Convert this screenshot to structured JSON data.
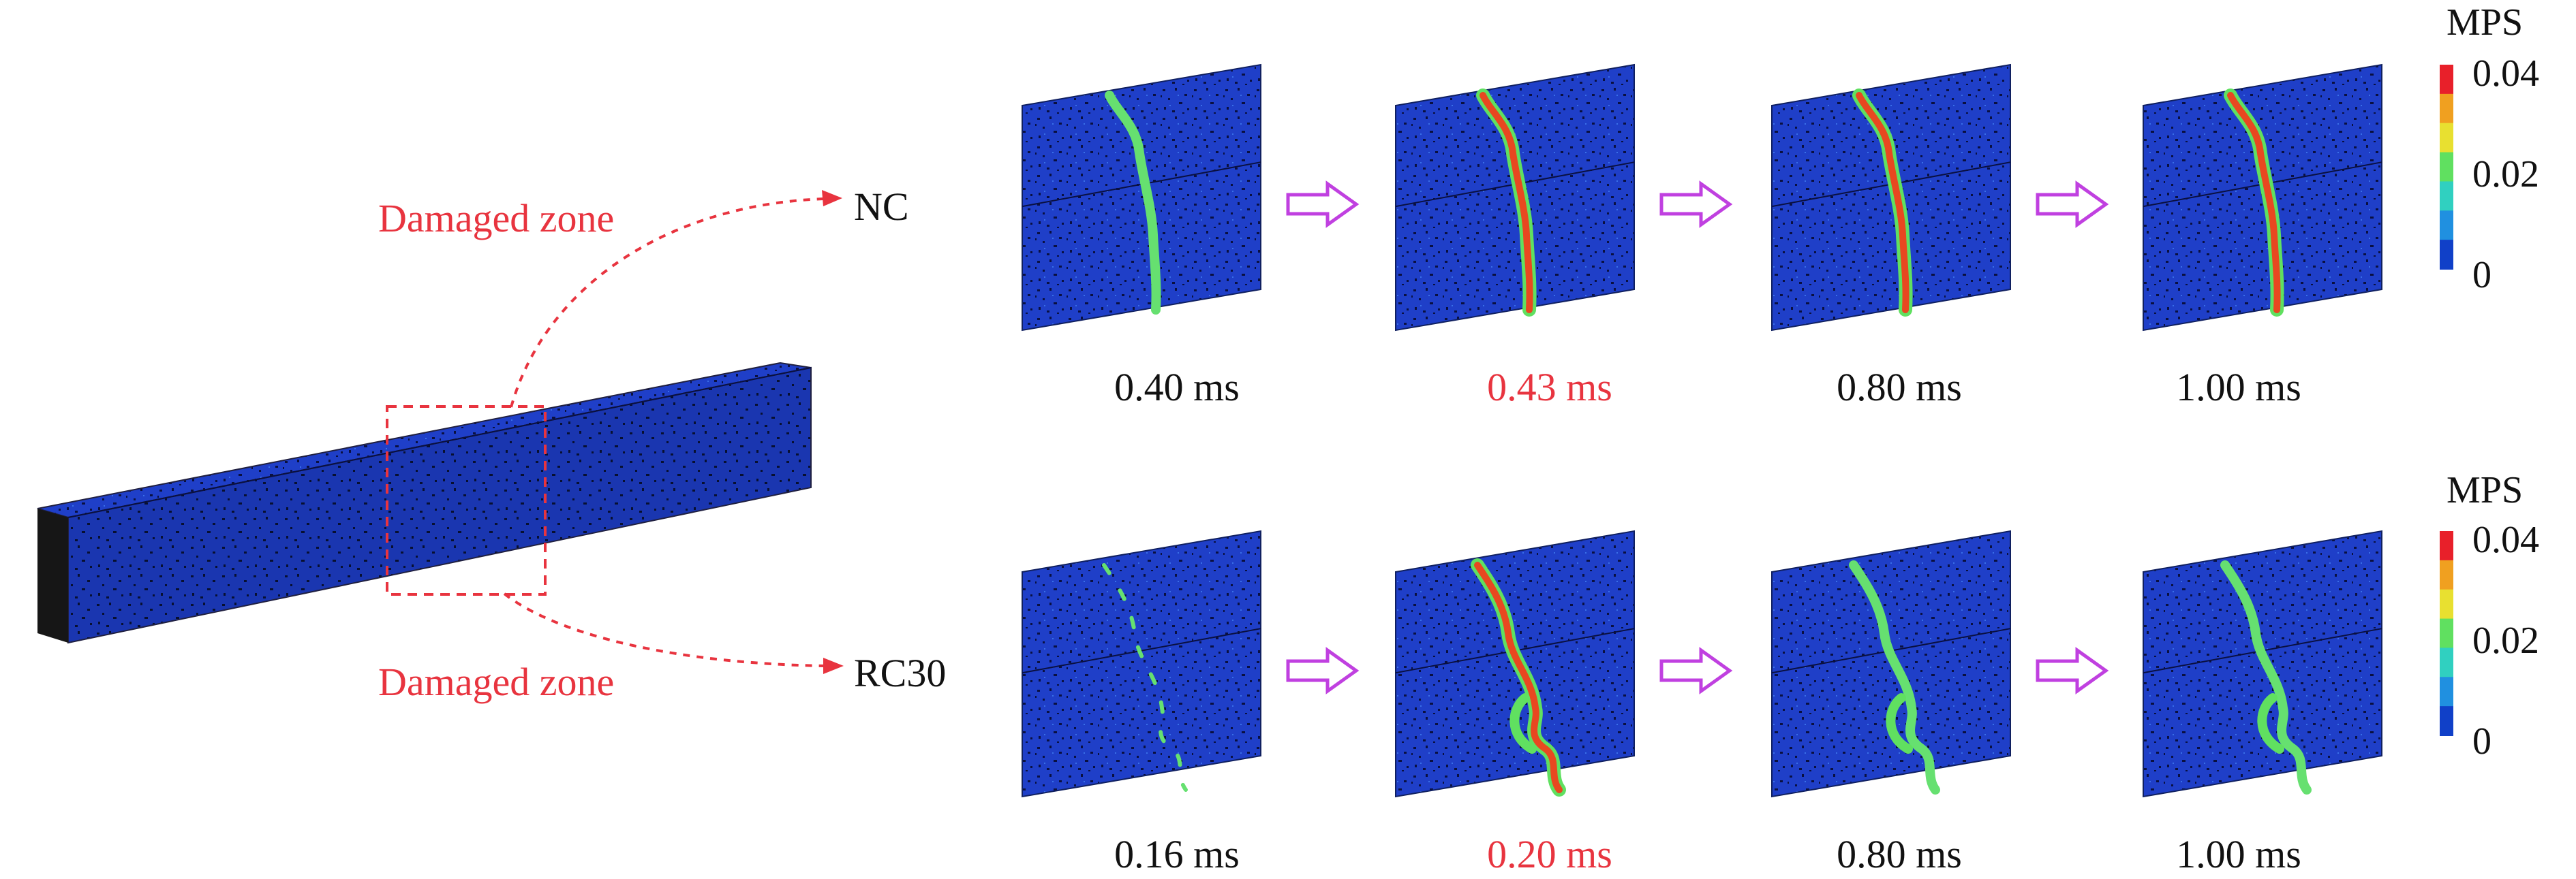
{
  "rows": [
    {
      "material": "NC",
      "zone_label": "Damaged zone",
      "frames": [
        {
          "time": "0.40 ms",
          "highlight": false,
          "crack_color": "#66e070"
        },
        {
          "time": "0.43 ms",
          "highlight": true,
          "crack_color": "#e84820"
        },
        {
          "time": "0.80 ms",
          "highlight": false,
          "crack_color": "#e84820"
        },
        {
          "time": "1.00 ms",
          "highlight": false,
          "crack_color": "#e84820"
        }
      ]
    },
    {
      "material": "RC30",
      "zone_label": "Damaged zone",
      "frames": [
        {
          "time": "0.16 ms",
          "highlight": false,
          "crack_color": "#66e070"
        },
        {
          "time": "0.20 ms",
          "highlight": true,
          "crack_color": "#e84820"
        },
        {
          "time": "0.80 ms",
          "highlight": false,
          "crack_color": "#66e070"
        },
        {
          "time": "1.00 ms",
          "highlight": false,
          "crack_color": "#66e070"
        }
      ]
    }
  ],
  "colorbar": {
    "title": "MPS",
    "ticks": [
      "0.04",
      "0.02",
      "0"
    ],
    "colors": [
      "#e8202a",
      "#f0a020",
      "#e8e030",
      "#60e060",
      "#30d0c0",
      "#2090e0",
      "#1040c8"
    ]
  },
  "colors": {
    "concrete_blue": "#1f3fc8",
    "beam_side": "#1a1a1a",
    "highlight_red": "#e8343f",
    "arrow_purple": "#c040e0"
  }
}
